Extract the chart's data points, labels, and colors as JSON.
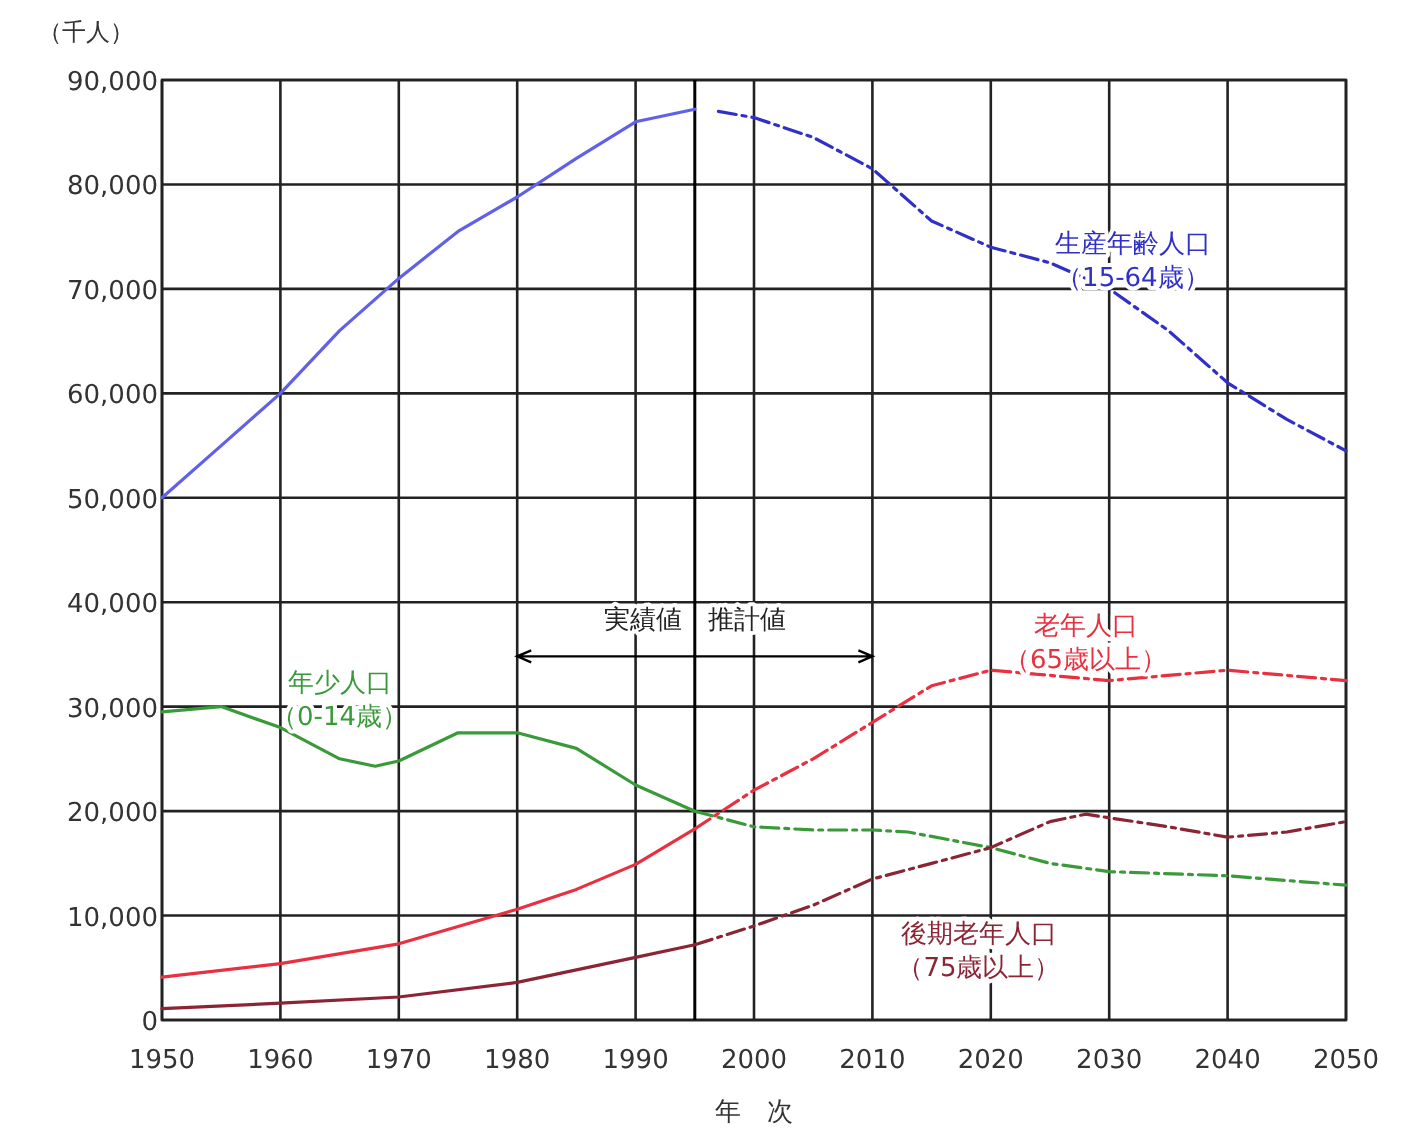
{
  "chart_data": {
    "type": "line",
    "xlabel": "年　次",
    "ylabel": "（千人）",
    "xlim": [
      1950,
      2050
    ],
    "xticks": [
      1950,
      1960,
      1970,
      1980,
      1990,
      2000,
      2010,
      2020,
      2030,
      2040,
      2050
    ],
    "ylim": [
      0,
      90000
    ],
    "yticks": [
      0,
      {
        "value": 10000,
        "label": "10,000"
      },
      {
        "value": 20000,
        "label": "20,000"
      },
      {
        "value": 30000,
        "label": "30,000"
      },
      {
        "value": 40000,
        "label": "40,000"
      },
      {
        "value": 50000,
        "label": "50,000"
      },
      {
        "value": 60000,
        "label": "60,000"
      },
      {
        "value": 70000,
        "label": "70,000"
      },
      {
        "value": 80000,
        "label": "80,000"
      },
      {
        "value": 90000,
        "label": "90,000"
      }
    ],
    "grid": true,
    "marker": "none",
    "ref_lines": [
      {
        "axis": "x",
        "value": 1995,
        "color": "#000000"
      }
    ],
    "annotations": [
      {
        "text": "実績値　推計値",
        "x": 1995,
        "y": 37500
      }
    ],
    "series": [
      {
        "color": "#6060e8",
        "line_style": "solid",
        "x": [
          1950,
          1955,
          1960,
          1965,
          1970,
          1975,
          1980,
          1985,
          1990,
          1995
        ],
        "values": [
          50000,
          55000,
          60000,
          66000,
          71000,
          75500,
          78800,
          82500,
          86000,
          87200
        ]
      },
      {
        "name": "生産年齢人口（15-64歳）",
        "color": "#3030c8",
        "line_style": "dashed",
        "x": [
          1997,
          2000,
          2005,
          2010,
          2015,
          2020,
          2025,
          2030,
          2035,
          2040,
          2045,
          2050
        ],
        "values": [
          87000,
          86400,
          84500,
          81500,
          76500,
          74000,
          72500,
          70000,
          66000,
          61000,
          57500,
          54500
        ]
      },
      {
        "name": "年少人口（0-14歳）",
        "color": "#3a9a3a",
        "line_style": "solid",
        "x": [
          1950,
          1955,
          1960,
          1965,
          1968,
          1970,
          1975,
          1980,
          1985,
          1990,
          1995
        ],
        "values": [
          29500,
          30000,
          28000,
          25000,
          24300,
          24800,
          27500,
          27500,
          26000,
          22500,
          20000
        ]
      },
      {
        "color": "#3a9a3a",
        "line_style": "dashed",
        "x": [
          1995,
          2000,
          2005,
          2010,
          2013,
          2020,
          2025,
          2030,
          2040,
          2050
        ],
        "values": [
          20000,
          18500,
          18200,
          18200,
          18000,
          16500,
          15000,
          14200,
          13800,
          12900
        ]
      },
      {
        "color": "#e83040",
        "line_style": "solid",
        "x": [
          1950,
          1960,
          1970,
          1980,
          1985,
          1990,
          1995
        ],
        "values": [
          4100,
          5400,
          7300,
          10600,
          12500,
          14900,
          18300
        ]
      },
      {
        "name": "老年人口（65歳以上）",
        "color": "#e83040",
        "line_style": "dashed",
        "x": [
          1995,
          2000,
          2005,
          2010,
          2015,
          2020,
          2025,
          2030,
          2040,
          2050
        ],
        "values": [
          18300,
          22000,
          25000,
          28500,
          32000,
          33500,
          33000,
          32500,
          33500,
          32500
        ]
      },
      {
        "color": "#8b2535",
        "line_style": "solid",
        "x": [
          1950,
          1960,
          1970,
          1980,
          1990,
          1995
        ],
        "values": [
          1100,
          1600,
          2200,
          3600,
          6000,
          7200
        ]
      },
      {
        "name": "後期老年人口（75歳以上）",
        "color": "#8b2535",
        "line_style": "dashed",
        "x": [
          1995,
          2000,
          2005,
          2010,
          2015,
          2020,
          2025,
          2028,
          2035,
          2040,
          2045,
          2050
        ],
        "values": [
          7200,
          9000,
          11000,
          13500,
          15000,
          16500,
          19000,
          19700,
          18500,
          17500,
          18000,
          19000
        ]
      }
    ]
  }
}
